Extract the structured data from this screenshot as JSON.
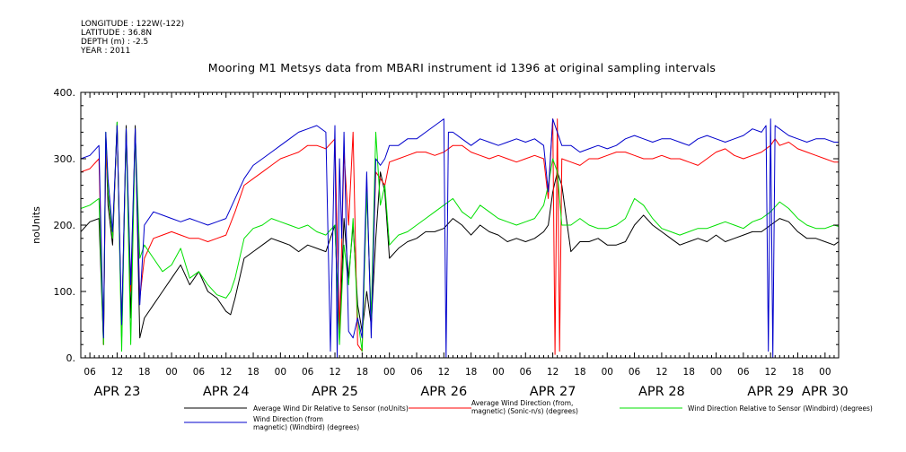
{
  "header": {
    "longitude": "LONGITUDE : 122W(-122)",
    "latitude": "LATITUDE : 36.8N",
    "depth": "DEPTH (m) : -2.5",
    "year": "YEAR : 2011"
  },
  "chart_data": {
    "type": "line",
    "title": "Mooring M1 Metsys data from MBARI instrument id 1396 at original sampling intervals",
    "ylabel": "noUnits",
    "xlabel": "",
    "ylim": [
      0,
      400
    ],
    "yticks": [
      "0.",
      "100.",
      "200.",
      "300.",
      "400."
    ],
    "xrange_hours": [
      4,
      171
    ],
    "hour_ticks": [
      {
        "h": 6,
        "label": "06"
      },
      {
        "h": 12,
        "label": "12"
      },
      {
        "h": 18,
        "label": "18"
      },
      {
        "h": 24,
        "label": "00"
      },
      {
        "h": 30,
        "label": "06"
      },
      {
        "h": 36,
        "label": "12"
      },
      {
        "h": 42,
        "label": "18"
      },
      {
        "h": 48,
        "label": "00"
      },
      {
        "h": 54,
        "label": "06"
      },
      {
        "h": 60,
        "label": "12"
      },
      {
        "h": 66,
        "label": "18"
      },
      {
        "h": 72,
        "label": "00"
      },
      {
        "h": 78,
        "label": "06"
      },
      {
        "h": 84,
        "label": "12"
      },
      {
        "h": 90,
        "label": "18"
      },
      {
        "h": 96,
        "label": "00"
      },
      {
        "h": 102,
        "label": "06"
      },
      {
        "h": 108,
        "label": "12"
      },
      {
        "h": 114,
        "label": "18"
      },
      {
        "h": 120,
        "label": "00"
      },
      {
        "h": 126,
        "label": "06"
      },
      {
        "h": 132,
        "label": "12"
      },
      {
        "h": 138,
        "label": "18"
      },
      {
        "h": 144,
        "label": "00"
      },
      {
        "h": 150,
        "label": "06"
      },
      {
        "h": 156,
        "label": "12"
      },
      {
        "h": 162,
        "label": "18"
      },
      {
        "h": 168,
        "label": "00"
      }
    ],
    "day_labels": [
      {
        "h": 12,
        "label": "APR 23"
      },
      {
        "h": 36,
        "label": "APR 24"
      },
      {
        "h": 60,
        "label": "APR 25"
      },
      {
        "h": 84,
        "label": "APR 26"
      },
      {
        "h": 108,
        "label": "APR 27"
      },
      {
        "h": 132,
        "label": "APR 28"
      },
      {
        "h": 156,
        "label": "APR 29"
      },
      {
        "h": 168,
        "label": "APR 30"
      }
    ],
    "series": [
      {
        "name": "Average Wind Dir Relative to Sensor (noUnits)",
        "color": "#000000",
        "x": [
          4,
          6,
          8,
          9,
          9.5,
          10,
          11,
          12,
          13,
          14,
          15,
          16,
          17,
          18,
          20,
          22,
          24,
          26,
          28,
          30,
          32,
          34,
          36,
          37,
          38,
          40,
          42,
          44,
          46,
          48,
          50,
          52,
          54,
          56,
          58,
          60,
          61,
          62,
          63,
          64,
          65,
          66,
          67,
          68,
          69,
          70,
          71,
          72,
          74,
          76,
          78,
          80,
          82,
          84,
          86,
          88,
          90,
          92,
          94,
          96,
          98,
          100,
          102,
          104,
          106,
          107,
          108,
          109,
          110,
          112,
          114,
          116,
          118,
          120,
          122,
          124,
          126,
          128,
          130,
          132,
          134,
          136,
          138,
          140,
          142,
          144,
          146,
          148,
          150,
          152,
          154,
          156,
          158,
          160,
          162,
          164,
          166,
          168,
          170,
          171
        ],
        "y": [
          190,
          205,
          210,
          20,
          330,
          230,
          170,
          355,
          30,
          350,
          60,
          350,
          30,
          60,
          80,
          100,
          120,
          140,
          110,
          130,
          100,
          90,
          70,
          65,
          90,
          150,
          160,
          170,
          180,
          175,
          170,
          160,
          170,
          165,
          160,
          200,
          30,
          210,
          120,
          200,
          80,
          40,
          100,
          50,
          180,
          280,
          250,
          150,
          165,
          175,
          180,
          190,
          190,
          195,
          210,
          200,
          185,
          200,
          190,
          185,
          175,
          180,
          175,
          180,
          190,
          200,
          250,
          280,
          260,
          160,
          175,
          175,
          180,
          170,
          170,
          175,
          200,
          215,
          200,
          190,
          180,
          170,
          175,
          180,
          175,
          185,
          175,
          180,
          185,
          190,
          190,
          200,
          210,
          205,
          190,
          180,
          180,
          175,
          170,
          175
        ]
      },
      {
        "name": "Average Wind Direction (from, magnetic) (Sonic-n/s) (degrees)",
        "color": "#ff0000",
        "x": [
          4,
          6,
          8,
          9,
          9.5,
          10,
          11,
          12,
          13,
          14,
          15,
          16,
          17,
          18,
          20,
          22,
          24,
          26,
          28,
          30,
          32,
          34,
          36,
          38,
          40,
          42,
          44,
          46,
          48,
          50,
          52,
          54,
          56,
          58,
          60,
          61,
          62,
          63,
          64,
          65,
          66,
          67,
          68,
          69,
          70,
          71,
          72,
          74,
          76,
          78,
          80,
          82,
          84,
          86,
          88,
          90,
          92,
          94,
          96,
          98,
          100,
          102,
          104,
          106,
          107,
          108,
          108.5,
          109,
          109.5,
          110,
          112,
          114,
          116,
          118,
          120,
          122,
          124,
          126,
          128,
          130,
          132,
          134,
          136,
          138,
          140,
          142,
          144,
          146,
          148,
          150,
          152,
          154,
          156,
          157,
          158,
          160,
          162,
          164,
          166,
          168,
          170,
          171
        ],
        "y": [
          280,
          285,
          300,
          20,
          310,
          250,
          180,
          350,
          40,
          340,
          100,
          340,
          90,
          150,
          180,
          185,
          190,
          185,
          180,
          180,
          175,
          180,
          185,
          220,
          260,
          270,
          280,
          290,
          300,
          305,
          310,
          320,
          320,
          315,
          330,
          40,
          310,
          200,
          340,
          20,
          10,
          260,
          50,
          280,
          270,
          260,
          295,
          300,
          305,
          310,
          310,
          305,
          310,
          320,
          320,
          310,
          305,
          300,
          305,
          300,
          295,
          300,
          305,
          300,
          240,
          360,
          5,
          360,
          10,
          300,
          295,
          290,
          300,
          300,
          305,
          310,
          310,
          305,
          300,
          300,
          305,
          300,
          300,
          295,
          290,
          300,
          310,
          315,
          305,
          300,
          305,
          310,
          320,
          330,
          320,
          325,
          315,
          310,
          305,
          300,
          295,
          295
        ]
      },
      {
        "name": "Wind Direction Relative to Sensor (Windbird) (degrees)",
        "color": "#00e000",
        "x": [
          4,
          6,
          8,
          9,
          9.5,
          10,
          11,
          12,
          13,
          14,
          15,
          16,
          17,
          18,
          20,
          22,
          24,
          26,
          28,
          30,
          32,
          34,
          36,
          37,
          38,
          40,
          42,
          44,
          46,
          48,
          50,
          52,
          54,
          56,
          58,
          60,
          61,
          62,
          63,
          64,
          65,
          66,
          67,
          68,
          69,
          70,
          71,
          72,
          74,
          76,
          78,
          80,
          82,
          84,
          86,
          88,
          90,
          92,
          94,
          96,
          98,
          100,
          102,
          104,
          106,
          107,
          108,
          109,
          110,
          112,
          114,
          116,
          118,
          120,
          122,
          124,
          126,
          128,
          130,
          132,
          134,
          136,
          138,
          140,
          142,
          144,
          146,
          148,
          150,
          152,
          154,
          156,
          158,
          160,
          162,
          164,
          166,
          168,
          170,
          171
        ],
        "y": [
          225,
          230,
          240,
          20,
          340,
          250,
          180,
          355,
          10,
          345,
          20,
          340,
          150,
          170,
          150,
          130,
          140,
          165,
          120,
          130,
          110,
          95,
          90,
          100,
          120,
          180,
          195,
          200,
          210,
          205,
          200,
          195,
          200,
          190,
          185,
          200,
          20,
          170,
          110,
          210,
          60,
          10,
          250,
          60,
          340,
          230,
          260,
          170,
          185,
          190,
          200,
          210,
          220,
          230,
          240,
          220,
          210,
          230,
          220,
          210,
          205,
          200,
          205,
          210,
          230,
          260,
          300,
          280,
          200,
          200,
          210,
          200,
          195,
          195,
          200,
          210,
          240,
          230,
          210,
          195,
          190,
          185,
          190,
          195,
          195,
          200,
          205,
          200,
          195,
          205,
          210,
          220,
          235,
          225,
          210,
          200,
          195,
          195,
          200,
          198
        ]
      },
      {
        "name": "Wind Direction (from, magnetic) (Windbird) (degrees)",
        "color": "#0000cc",
        "x": [
          4,
          6,
          8,
          9,
          9.5,
          10,
          11,
          12,
          13,
          14,
          15,
          16,
          17,
          18,
          20,
          22,
          24,
          26,
          28,
          30,
          32,
          34,
          36,
          38,
          40,
          42,
          44,
          46,
          48,
          50,
          52,
          54,
          56,
          58,
          59,
          60,
          60.5,
          61,
          61.5,
          62,
          63,
          64,
          65,
          66,
          67,
          68,
          69,
          70,
          71,
          72,
          74,
          76,
          78,
          80,
          82,
          84,
          84.5,
          85,
          86,
          88,
          90,
          92,
          94,
          96,
          98,
          100,
          102,
          104,
          106,
          107,
          108,
          109,
          110,
          112,
          114,
          116,
          118,
          120,
          122,
          124,
          126,
          128,
          130,
          132,
          134,
          136,
          138,
          140,
          142,
          144,
          146,
          148,
          150,
          152,
          154,
          155,
          155.5,
          156,
          156.5,
          157,
          158,
          160,
          162,
          164,
          166,
          168,
          170,
          171
        ],
        "y": [
          300,
          305,
          320,
          30,
          340,
          270,
          190,
          350,
          50,
          345,
          110,
          345,
          80,
          200,
          220,
          215,
          210,
          205,
          210,
          205,
          200,
          205,
          210,
          240,
          270,
          290,
          300,
          310,
          320,
          330,
          340,
          345,
          350,
          340,
          10,
          350,
          0,
          300,
          180,
          340,
          40,
          30,
          60,
          30,
          280,
          30,
          300,
          290,
          300,
          320,
          320,
          330,
          330,
          340,
          350,
          360,
          0,
          340,
          340,
          330,
          320,
          330,
          325,
          320,
          325,
          330,
          325,
          330,
          320,
          250,
          360,
          340,
          320,
          320,
          310,
          315,
          320,
          315,
          320,
          330,
          335,
          330,
          325,
          330,
          330,
          325,
          320,
          330,
          335,
          330,
          325,
          330,
          335,
          345,
          340,
          350,
          10,
          360,
          0,
          350,
          345,
          335,
          330,
          325,
          330,
          330,
          325,
          325
        ]
      }
    ],
    "legend": [
      {
        "lines": [
          "Average Wind Dir Relative to Sensor (noUnits)"
        ],
        "color": "#000000"
      },
      {
        "lines": [
          "Average Wind Direction (from,",
          "magnetic) (Sonic-n/s) (degrees)"
        ],
        "color": "#ff0000"
      },
      {
        "lines": [
          "Wind Direction Relative to Sensor (Windbird) (degrees)"
        ],
        "color": "#00e000"
      },
      {
        "lines": [
          "Wind Direction (from",
          "magnetic) (Windbird) (degrees)"
        ],
        "color": "#0000cc"
      }
    ]
  }
}
